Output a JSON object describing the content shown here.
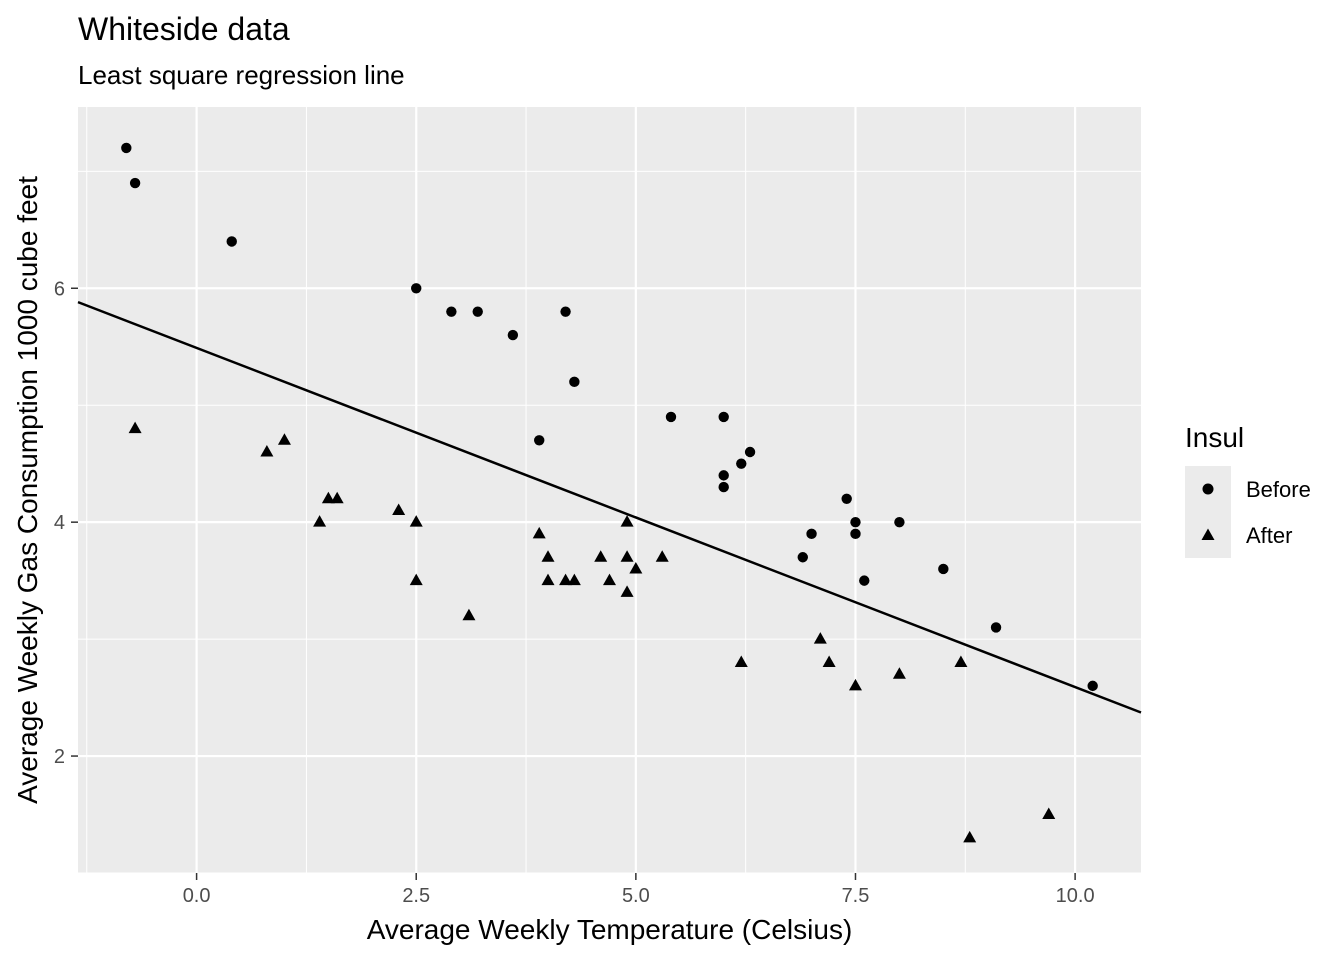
{
  "chart_data": {
    "type": "scatter",
    "title": "Whiteside data",
    "subtitle": "Least square regression line",
    "xlabel": "Average Weekly Temperature (Celsius)",
    "ylabel": "Average Weekly Gas Consumption 1000 cube feet",
    "xlim": [
      -1.35,
      10.75
    ],
    "ylim": [
      1.0,
      7.55
    ],
    "x_ticks": [
      0.0,
      2.5,
      5.0,
      7.5,
      10.0
    ],
    "x_tick_labels": [
      "0.0",
      "2.5",
      "5.0",
      "7.5",
      "10.0"
    ],
    "y_ticks": [
      2,
      4,
      6
    ],
    "y_tick_labels": [
      "2",
      "4",
      "6"
    ],
    "grid": true,
    "legend": {
      "title": "Insul",
      "position": "right"
    },
    "series": [
      {
        "name": "Before",
        "marker": "circle",
        "color": "#000000",
        "points": [
          [
            -0.8,
            7.2
          ],
          [
            -0.7,
            6.9
          ],
          [
            0.4,
            6.4
          ],
          [
            2.5,
            6.0
          ],
          [
            2.9,
            5.8
          ],
          [
            3.2,
            5.8
          ],
          [
            3.6,
            5.6
          ],
          [
            3.9,
            4.7
          ],
          [
            4.2,
            5.8
          ],
          [
            4.3,
            5.2
          ],
          [
            5.4,
            4.9
          ],
          [
            6.0,
            4.9
          ],
          [
            6.0,
            4.3
          ],
          [
            6.0,
            4.4
          ],
          [
            6.2,
            4.5
          ],
          [
            6.3,
            4.6
          ],
          [
            6.9,
            3.7
          ],
          [
            7.0,
            3.9
          ],
          [
            7.4,
            4.2
          ],
          [
            7.5,
            3.9
          ],
          [
            7.5,
            4.0
          ],
          [
            7.6,
            3.5
          ],
          [
            8.0,
            4.0
          ],
          [
            8.5,
            3.6
          ],
          [
            9.1,
            3.1
          ],
          [
            10.2,
            2.6
          ]
        ]
      },
      {
        "name": "After",
        "marker": "triangle",
        "color": "#000000",
        "points": [
          [
            -0.7,
            4.8
          ],
          [
            0.8,
            4.6
          ],
          [
            1.0,
            4.7
          ],
          [
            1.4,
            4.0
          ],
          [
            1.5,
            4.2
          ],
          [
            1.6,
            4.2
          ],
          [
            2.3,
            4.1
          ],
          [
            2.5,
            4.0
          ],
          [
            2.5,
            3.5
          ],
          [
            3.1,
            3.2
          ],
          [
            3.9,
            3.9
          ],
          [
            4.0,
            3.5
          ],
          [
            4.0,
            3.7
          ],
          [
            4.2,
            3.5
          ],
          [
            4.3,
            3.5
          ],
          [
            4.6,
            3.7
          ],
          [
            4.7,
            3.5
          ],
          [
            4.9,
            3.4
          ],
          [
            4.9,
            3.7
          ],
          [
            4.9,
            4.0
          ],
          [
            5.0,
            3.6
          ],
          [
            5.3,
            3.7
          ],
          [
            6.2,
            2.8
          ],
          [
            7.1,
            3.0
          ],
          [
            7.2,
            2.8
          ],
          [
            7.5,
            2.6
          ],
          [
            8.0,
            2.7
          ],
          [
            8.7,
            2.8
          ],
          [
            8.8,
            1.3
          ],
          [
            9.7,
            1.5
          ]
        ]
      }
    ],
    "regression_line": {
      "intercept": 5.49,
      "slope": -0.29,
      "color": "#000000"
    }
  }
}
